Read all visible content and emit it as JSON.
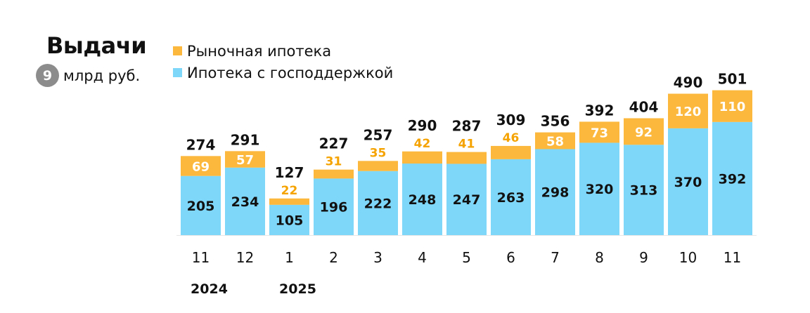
{
  "header": {
    "title": "Выдачи",
    "unit_badge": "9",
    "unit": "млрд руб."
  },
  "legend": [
    {
      "label": "Рыночная ипотека",
      "color": "#fbb83c"
    },
    {
      "label": "Ипотека с господдержкой",
      "color": "#7ed6f8"
    }
  ],
  "colors": {
    "market": "#fbb83c",
    "state": "#7ed6f8",
    "market_label_on_bar": "#ffffff",
    "market_label_above_bar": "#f5a300",
    "state_label": "#111111",
    "total_label": "#111111"
  },
  "chart_data": {
    "type": "bar",
    "stacked": true,
    "categories": [
      "11",
      "12",
      "1",
      "2",
      "3",
      "4",
      "5",
      "6",
      "7",
      "8",
      "9",
      "10",
      "11"
    ],
    "year_labels": [
      {
        "category_index": 0,
        "label": "2024"
      },
      {
        "category_index": 2,
        "label": "2025"
      }
    ],
    "series": [
      {
        "name": "Ипотека с господдержкой",
        "values": [
          205,
          234,
          105,
          196,
          222,
          248,
          247,
          263,
          298,
          320,
          313,
          370,
          392
        ]
      },
      {
        "name": "Рыночная ипотека",
        "values": [
          69,
          57,
          22,
          31,
          35,
          42,
          41,
          46,
          58,
          73,
          92,
          120,
          110
        ]
      }
    ],
    "totals": [
      274,
      291,
      127,
      227,
      257,
      290,
      287,
      309,
      356,
      392,
      404,
      490,
      501
    ],
    "ylim": [
      0,
      501
    ]
  }
}
